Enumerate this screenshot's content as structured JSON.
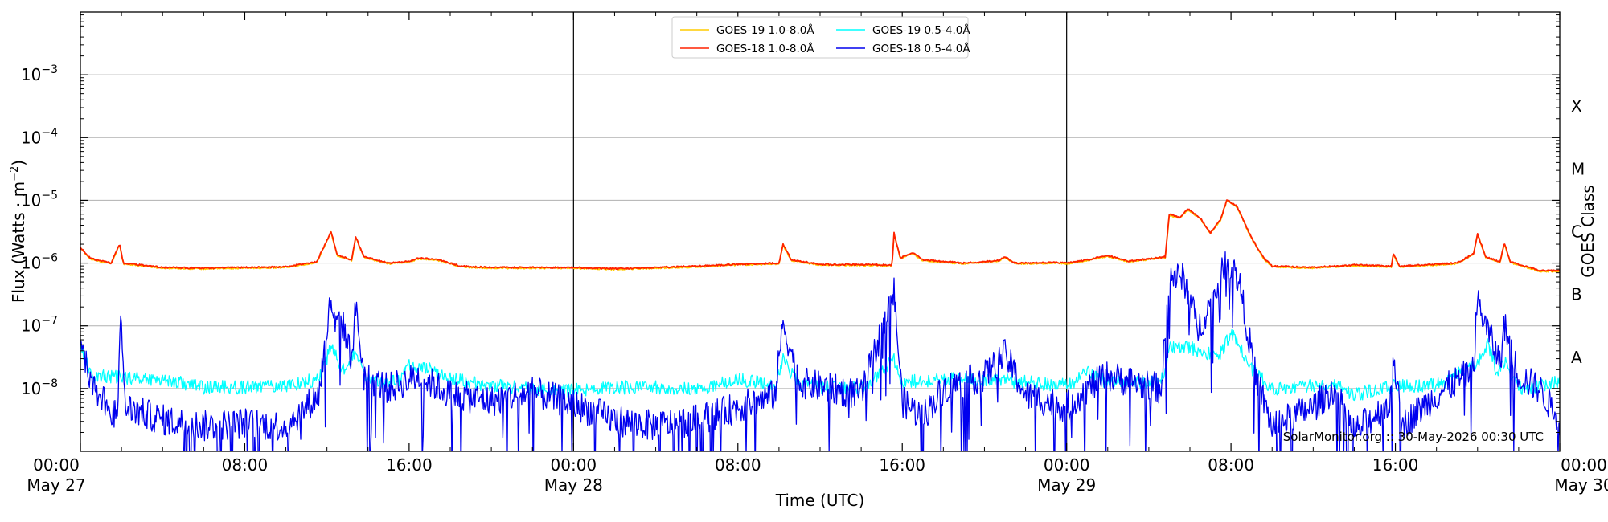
{
  "chart_data": {
    "type": "line",
    "xlabel": "Time (UTC)",
    "ylabel_html": "Flux (Watts · m",
    "ylabel_sup": "−2",
    "ylabel_close": ")",
    "y2label": "GOES Class",
    "yscale": "log",
    "ylim": [
      "1e-9",
      "1e-2"
    ],
    "xlim_hours": [
      0,
      72
    ],
    "x_ticks": [
      {
        "h": 0,
        "time": "00:00",
        "date": "May 27"
      },
      {
        "h": 8,
        "time": "08:00",
        "date": ""
      },
      {
        "h": 16,
        "time": "16:00",
        "date": ""
      },
      {
        "h": 24,
        "time": "00:00",
        "date": "May 28"
      },
      {
        "h": 32,
        "time": "08:00",
        "date": ""
      },
      {
        "h": 40,
        "time": "16:00",
        "date": ""
      },
      {
        "h": 48,
        "time": "00:00",
        "date": "May 29"
      },
      {
        "h": 56,
        "time": "08:00",
        "date": ""
      },
      {
        "h": 64,
        "time": "16:00",
        "date": ""
      },
      {
        "h": 72,
        "time": "00:00",
        "date": "May 30"
      }
    ],
    "y_ticks": [
      {
        "exp": -8,
        "label": "10",
        "sup": "−8"
      },
      {
        "exp": -7,
        "label": "10",
        "sup": "−7"
      },
      {
        "exp": -6,
        "label": "10",
        "sup": "−6"
      },
      {
        "exp": -5,
        "label": "10",
        "sup": "−5"
      },
      {
        "exp": -4,
        "label": "10",
        "sup": "−4"
      },
      {
        "exp": -3,
        "label": "10",
        "sup": "−3"
      }
    ],
    "goes_classes": [
      {
        "label": "A",
        "exp": -7.5
      },
      {
        "label": "B",
        "exp": -6.5
      },
      {
        "label": "C",
        "exp": -5.5
      },
      {
        "label": "M",
        "exp": -4.5
      },
      {
        "label": "X",
        "exp": -3.5
      }
    ],
    "day_boundaries_hours": [
      24,
      48
    ],
    "grid": "horizontal",
    "legend_position": "top-center",
    "series": [
      {
        "name": "GOES-19 1.0-8.0Å",
        "color": "#ffcc00",
        "band": "long",
        "offset": -0.01
      },
      {
        "name": "GOES-19 0.5-4.0Å",
        "color": "#00ffff",
        "band": "short19",
        "offset": 0
      },
      {
        "name": "GOES-18 1.0-8.0Å",
        "color": "#ff2200",
        "band": "long",
        "offset": 0
      },
      {
        "name": "GOES-18 0.5-4.0Å",
        "color": "#0000ee",
        "band": "short18",
        "offset": 0
      }
    ],
    "long_band_keypoints": [
      [
        0,
        -5.75
      ],
      [
        0.5,
        -5.93
      ],
      [
        1.5,
        -6.0
      ],
      [
        1.9,
        -5.7
      ],
      [
        2.1,
        -6.0
      ],
      [
        4,
        -6.07
      ],
      [
        6,
        -6.08
      ],
      [
        8,
        -6.07
      ],
      [
        10,
        -6.06
      ],
      [
        11.5,
        -5.98
      ],
      [
        12.2,
        -5.5
      ],
      [
        12.5,
        -5.87
      ],
      [
        13.2,
        -5.95
      ],
      [
        13.4,
        -5.58
      ],
      [
        13.8,
        -5.9
      ],
      [
        15,
        -6.0
      ],
      [
        16,
        -5.97
      ],
      [
        16.5,
        -5.92
      ],
      [
        17.5,
        -5.95
      ],
      [
        18.5,
        -6.05
      ],
      [
        20,
        -6.07
      ],
      [
        22,
        -6.07
      ],
      [
        24,
        -6.07
      ],
      [
        26,
        -6.09
      ],
      [
        28,
        -6.07
      ],
      [
        30,
        -6.05
      ],
      [
        31.9,
        -6.02
      ],
      [
        34,
        -6.0
      ],
      [
        34.2,
        -5.7
      ],
      [
        34.6,
        -5.95
      ],
      [
        36,
        -6.02
      ],
      [
        39.5,
        -6.03
      ],
      [
        39.6,
        -5.52
      ],
      [
        39.9,
        -5.92
      ],
      [
        40.5,
        -5.83
      ],
      [
        41,
        -5.95
      ],
      [
        43,
        -6.0
      ],
      [
        44.7,
        -5.96
      ],
      [
        45,
        -5.9
      ],
      [
        45.5,
        -6.0
      ],
      [
        47.5,
        -5.99
      ],
      [
        48,
        -6.0
      ],
      [
        49,
        -5.95
      ],
      [
        50,
        -5.88
      ],
      [
        51,
        -5.97
      ],
      [
        52.8,
        -5.9
      ],
      [
        53,
        -5.22
      ],
      [
        53.5,
        -5.28
      ],
      [
        53.9,
        -5.14
      ],
      [
        54.5,
        -5.28
      ],
      [
        55,
        -5.52
      ],
      [
        55.5,
        -5.3
      ],
      [
        55.8,
        -4.99
      ],
      [
        56.3,
        -5.1
      ],
      [
        57,
        -5.6
      ],
      [
        57.6,
        -5.92
      ],
      [
        58,
        -6.05
      ],
      [
        60,
        -6.07
      ],
      [
        62,
        -6.03
      ],
      [
        63.8,
        -6.05
      ],
      [
        63.9,
        -5.85
      ],
      [
        64.2,
        -6.05
      ],
      [
        67,
        -6.0
      ],
      [
        67.8,
        -5.85
      ],
      [
        68,
        -5.54
      ],
      [
        68.4,
        -5.9
      ],
      [
        69.1,
        -5.98
      ],
      [
        69.3,
        -5.68
      ],
      [
        69.6,
        -5.98
      ],
      [
        71,
        -6.12
      ],
      [
        72,
        -6.12
      ]
    ],
    "short19_keypoints": [
      [
        0,
        -7.3
      ],
      [
        0.5,
        -7.8
      ],
      [
        2,
        -7.82
      ],
      [
        4,
        -7.85
      ],
      [
        6,
        -7.98
      ],
      [
        8,
        -7.98
      ],
      [
        10,
        -7.95
      ],
      [
        11.6,
        -7.85
      ],
      [
        12.2,
        -7.35
      ],
      [
        12.8,
        -7.7
      ],
      [
        13.3,
        -7.45
      ],
      [
        14,
        -7.85
      ],
      [
        15.5,
        -7.9
      ],
      [
        16,
        -7.62
      ],
      [
        17,
        -7.7
      ],
      [
        18,
        -7.85
      ],
      [
        20,
        -7.95
      ],
      [
        22,
        -8.0
      ],
      [
        24,
        -8.03
      ],
      [
        26,
        -7.98
      ],
      [
        28,
        -7.98
      ],
      [
        30,
        -8.02
      ],
      [
        32,
        -7.85
      ],
      [
        33.8,
        -7.95
      ],
      [
        34.2,
        -7.55
      ],
      [
        35,
        -7.95
      ],
      [
        38,
        -8.0
      ],
      [
        39.6,
        -7.55
      ],
      [
        40,
        -7.9
      ],
      [
        42,
        -7.85
      ],
      [
        44,
        -7.85
      ],
      [
        46,
        -7.9
      ],
      [
        48,
        -7.95
      ],
      [
        49,
        -7.75
      ],
      [
        50,
        -7.9
      ],
      [
        52.6,
        -7.9
      ],
      [
        53,
        -7.35
      ],
      [
        54,
        -7.35
      ],
      [
        55.4,
        -7.5
      ],
      [
        56,
        -7.1
      ],
      [
        57,
        -7.7
      ],
      [
        58,
        -8.0
      ],
      [
        60,
        -7.95
      ],
      [
        61,
        -7.9
      ],
      [
        62,
        -8.1
      ],
      [
        64,
        -7.95
      ],
      [
        66,
        -7.95
      ],
      [
        68,
        -7.6
      ],
      [
        68.5,
        -7.3
      ],
      [
        69,
        -7.8
      ],
      [
        69.3,
        -7.55
      ],
      [
        70,
        -8.0
      ],
      [
        72,
        -7.9
      ]
    ],
    "short18_keypoints": [
      [
        0,
        -7.35
      ],
      [
        0.8,
        -8.05
      ],
      [
        1.8,
        -8.45
      ],
      [
        1.95,
        -6.88
      ],
      [
        2.2,
        -8.3
      ],
      [
        4,
        -8.5
      ],
      [
        6,
        -8.6
      ],
      [
        8,
        -8.55
      ],
      [
        10,
        -8.6
      ],
      [
        11.6,
        -8.1
      ],
      [
        12.2,
        -6.55
      ],
      [
        12.4,
        -7.05
      ],
      [
        12.7,
        -6.9
      ],
      [
        13.2,
        -7.5
      ],
      [
        13.4,
        -6.7
      ],
      [
        13.8,
        -7.8
      ],
      [
        15,
        -8.0
      ],
      [
        16.5,
        -7.8
      ],
      [
        18,
        -8.1
      ],
      [
        20,
        -8.2
      ],
      [
        22,
        -8.05
      ],
      [
        24,
        -8.25
      ],
      [
        26,
        -8.5
      ],
      [
        28,
        -8.6
      ],
      [
        30,
        -8.5
      ],
      [
        32,
        -8.3
      ],
      [
        33.8,
        -8.1
      ],
      [
        34.2,
        -6.95
      ],
      [
        35,
        -7.9
      ],
      [
        38,
        -8.1
      ],
      [
        39.6,
        -6.45
      ],
      [
        40,
        -8.2
      ],
      [
        41,
        -8.45
      ],
      [
        42,
        -8.0
      ],
      [
        44,
        -7.8
      ],
      [
        45,
        -7.45
      ],
      [
        46,
        -8.1
      ],
      [
        48,
        -8.3
      ],
      [
        49,
        -8.0
      ],
      [
        50,
        -7.8
      ],
      [
        52.6,
        -8.0
      ],
      [
        53,
        -6.2
      ],
      [
        53.7,
        -6.25
      ],
      [
        54.4,
        -7.05
      ],
      [
        55.3,
        -6.45
      ],
      [
        55.8,
        -5.9
      ],
      [
        56.4,
        -6.3
      ],
      [
        57.2,
        -7.8
      ],
      [
        58,
        -8.6
      ],
      [
        60,
        -8.3
      ],
      [
        61,
        -8.0
      ],
      [
        62,
        -8.7
      ],
      [
        63.8,
        -8.2
      ],
      [
        63.9,
        -7.4
      ],
      [
        64.3,
        -8.6
      ],
      [
        66,
        -8.1
      ],
      [
        67.8,
        -7.7
      ],
      [
        68,
        -6.58
      ],
      [
        68.4,
        -7.0
      ],
      [
        69.1,
        -7.6
      ],
      [
        69.3,
        -6.98
      ],
      [
        70,
        -7.8
      ],
      [
        71,
        -8.0
      ],
      [
        72,
        -8.5
      ]
    ],
    "watermark": "SolarMonitor.org :: 30-May-2026 00:30 UTC"
  }
}
